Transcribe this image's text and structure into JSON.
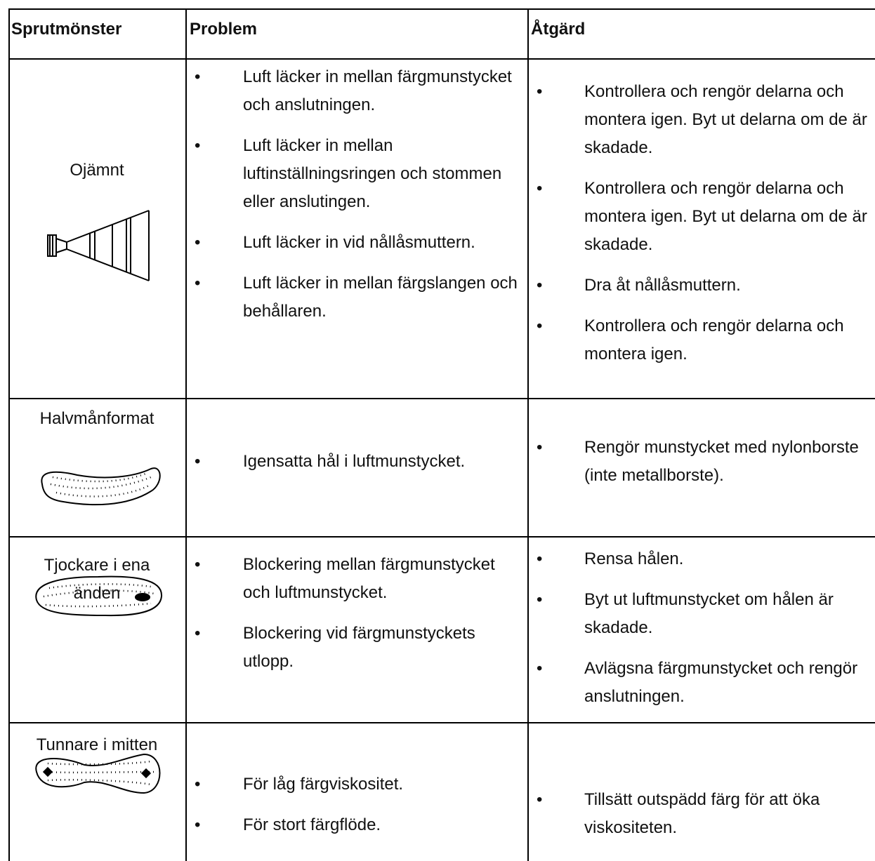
{
  "table": {
    "header": [
      "Sprutmönster",
      "Problem",
      "Åtgärd"
    ],
    "rows": [
      {
        "pattern": "Ojämnt",
        "problems": [
          "Luft läcker in mellan färgmunstycket och anslutningen.",
          "Luft läcker in mellan luftinställningsringen och stommen eller anslutingen.",
          "Luft läcker in vid nållåsmuttern.",
          "Luft läcker in mellan färgslangen och behållaren."
        ],
        "actions": [
          "Kontrollera och rengör delarna och montera igen. Byt ut delarna om de är skadade.",
          "Kontrollera och rengör delarna och montera igen. Byt ut delarna om de är skadade.",
          "Dra åt nållåsmuttern.",
          "Kontrollera och rengör delarna och montera igen."
        ]
      },
      {
        "pattern": "Halvmånformat",
        "problems": [
          "Igensatta hål i luftmunstycket."
        ],
        "actions": [
          "Rengör munstycket med nylonborste (inte metallborste)."
        ]
      },
      {
        "pattern": "Tjockare i ena änden",
        "problems": [
          "Blockering mellan färgmunstycket och luftmunstycket.",
          "Blockering vid färgmunstyckets utlopp."
        ],
        "actions": [
          "Rensa hålen.",
          "Byt ut luftmunstycket om hålen är skadade.",
          "Avlägsna färgmunstycket och rengör anslutningen."
        ]
      },
      {
        "pattern": "Tunnare i mitten",
        "problems": [
          "För låg färgviskositet.",
          "För stort färgflöde."
        ],
        "actions": [
          "Tillsätt outspädd färg för att öka viskositeten."
        ]
      }
    ]
  }
}
